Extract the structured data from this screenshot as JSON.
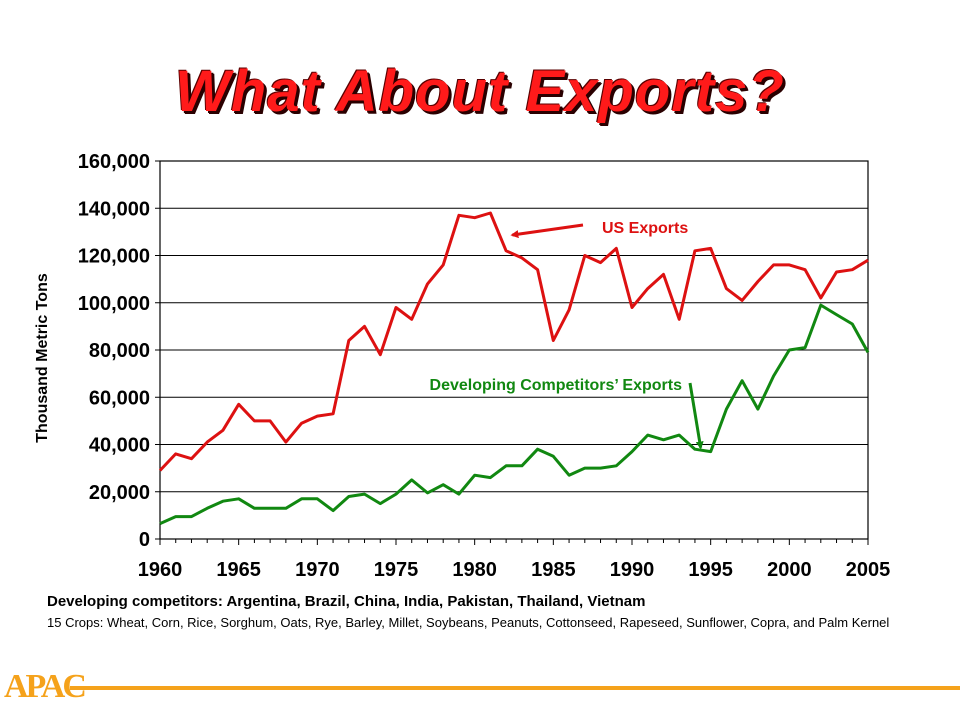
{
  "slide": {
    "title": "What About Exports?",
    "footnote_main": "Developing competitors: Argentina, Brazil, China, India, Pakistan, Thailand, Vietnam",
    "footnote_sub": "15 Crops: Wheat, Corn, Rice, Sorghum, Oats, Rye, Barley, Millet, Soybeans, Peanuts, Cottonseed, Rapeseed, Sunflower, Copra, and Palm Kernel",
    "logo_text": "APAC"
  },
  "colors": {
    "us": "#dd1111",
    "competitors": "#118811",
    "logo": "#f5a21b",
    "title": "#ff1a1a"
  },
  "chart_data": {
    "type": "line",
    "title": "",
    "xlabel": "",
    "ylabel": "Thousand Metric Tons",
    "xlim": [
      1960,
      2005
    ],
    "ylim": [
      0,
      160000
    ],
    "grid": true,
    "x_ticks": [
      "1960",
      "1965",
      "1970",
      "1975",
      "1980",
      "1985",
      "1990",
      "1995",
      "2000",
      "2005"
    ],
    "y_ticks": [
      "0",
      "20,000",
      "40,000",
      "60,000",
      "80,000",
      "100,000",
      "120,000",
      "140,000",
      "160,000"
    ],
    "x": [
      1960,
      1961,
      1962,
      1963,
      1964,
      1965,
      1966,
      1967,
      1968,
      1969,
      1970,
      1971,
      1972,
      1973,
      1974,
      1975,
      1976,
      1977,
      1978,
      1979,
      1980,
      1981,
      1982,
      1983,
      1984,
      1985,
      1986,
      1987,
      1988,
      1989,
      1990,
      1991,
      1992,
      1993,
      1994,
      1995,
      1996,
      1997,
      1998,
      1999,
      2000,
      2001,
      2002,
      2003,
      2004,
      2005
    ],
    "series": [
      {
        "name": "US Exports",
        "color": "#dd1111",
        "values": [
          29000,
          36000,
          34000,
          41000,
          46000,
          57000,
          50000,
          50000,
          41000,
          49000,
          52000,
          53000,
          84000,
          90000,
          78000,
          98000,
          93000,
          108000,
          116000,
          137000,
          136000,
          138000,
          122000,
          119000,
          114000,
          84000,
          97000,
          120000,
          117000,
          123000,
          98000,
          106000,
          112000,
          93000,
          122000,
          123000,
          106000,
          101000,
          109000,
          116000,
          116000,
          114000,
          102000,
          113000,
          114000,
          118000
        ]
      },
      {
        "name": "Developing Competitors’ Exports",
        "color": "#118811",
        "values": [
          6500,
          9500,
          9500,
          13000,
          16000,
          17000,
          13000,
          13000,
          13000,
          17000,
          17000,
          12000,
          18000,
          19000,
          15000,
          19000,
          25000,
          19500,
          23000,
          19000,
          27000,
          26000,
          31000,
          31000,
          38000,
          35000,
          27000,
          30000,
          30000,
          31000,
          37000,
          44000,
          42000,
          44000,
          38000,
          37000,
          55000,
          67000,
          55000,
          69000,
          80000,
          81000,
          99000,
          95000,
          91000,
          79000
        ]
      }
    ],
    "annotations": [
      {
        "text": "US Exports",
        "series": 0,
        "target_x": 1981
      },
      {
        "text": "Developing Competitors’ Exports",
        "series": 1,
        "target_x": 1995
      }
    ]
  }
}
